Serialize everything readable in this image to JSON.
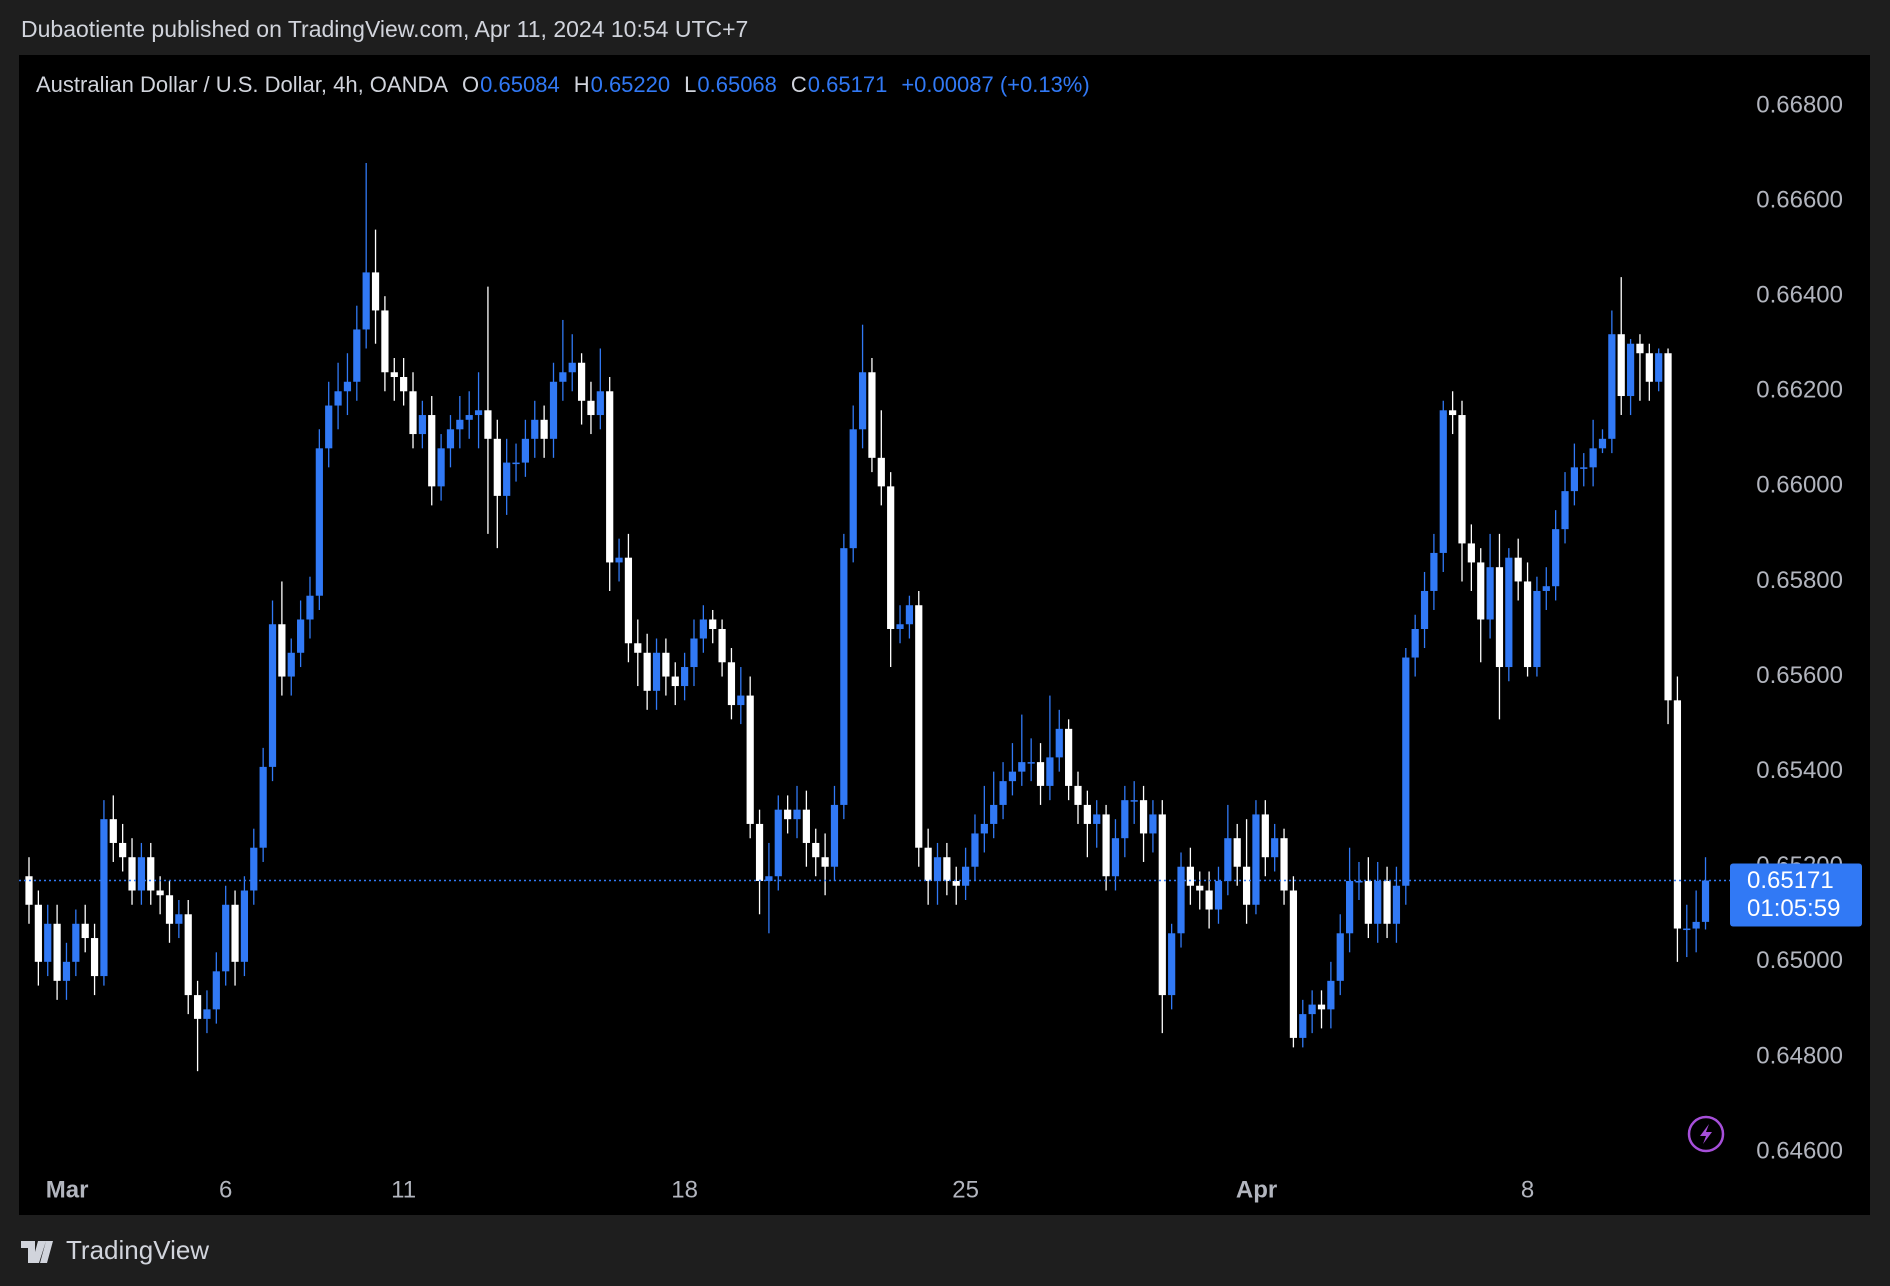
{
  "chart_data": {
    "type": "candlestick",
    "title": "Dubaotiente published on TradingView.com, Apr 11, 2024 10:54 UTC+7",
    "symbol": "Australian Dollar / U.S. Dollar, 4h, OANDA",
    "ohlc_legend": [
      {
        "key": "O",
        "value": "0.65084"
      },
      {
        "key": "H",
        "value": "0.65220"
      },
      {
        "key": "L",
        "value": "0.65068"
      },
      {
        "key": "C",
        "value": "0.65171"
      }
    ],
    "change": "+0.00087 (+0.13%)",
    "price_label": "0.65171",
    "countdown": "01:05:59",
    "footer": "TradingView",
    "up_color": "#3179f5",
    "down_color": "#ffffff",
    "ylim": [
      0.646,
      0.668
    ],
    "yticks": [
      {
        "value": 0.646,
        "label": "0.64600"
      },
      {
        "value": 0.648,
        "label": "0.64800"
      },
      {
        "value": 0.65,
        "label": "0.65000"
      },
      {
        "value": 0.652,
        "label": "0.65200"
      },
      {
        "value": 0.654,
        "label": "0.65400"
      },
      {
        "value": 0.656,
        "label": "0.65600"
      },
      {
        "value": 0.658,
        "label": "0.65800"
      },
      {
        "value": 0.66,
        "label": "0.66000"
      },
      {
        "value": 0.662,
        "label": "0.66200"
      },
      {
        "value": 0.664,
        "label": "0.66400"
      },
      {
        "value": 0.666,
        "label": "0.66600"
      },
      {
        "value": 0.668,
        "label": "0.66800"
      }
    ],
    "xticks": [
      {
        "value": 3,
        "label": "Mar"
      },
      {
        "value": 21,
        "label": "6"
      },
      {
        "value": 40,
        "label": "11"
      },
      {
        "value": 70,
        "label": "18"
      },
      {
        "value": 100,
        "label": "25"
      },
      {
        "value": 130,
        "label": "Apr"
      },
      {
        "value": 160,
        "label": "8"
      }
    ],
    "open": [
      0.6518,
      0.6512,
      0.65,
      0.6508,
      0.6496,
      0.65,
      0.6508,
      0.6505,
      0.6497,
      0.653,
      0.6525,
      0.6522,
      0.6515,
      0.6522,
      0.6515,
      0.6514,
      0.6508,
      0.651,
      0.6493,
      0.6488,
      0.649,
      0.6498,
      0.6512,
      0.65,
      0.6515,
      0.6524,
      0.6541,
      0.6571,
      0.656,
      0.6565,
      0.6572,
      0.6577,
      0.6608,
      0.6617,
      0.662,
      0.6622,
      0.6633,
      0.6645,
      0.6637,
      0.6624,
      0.6623,
      0.662,
      0.6611,
      0.6615,
      0.66,
      0.6608,
      0.6612,
      0.6614,
      0.6615,
      0.6616,
      0.661,
      0.6598,
      0.6605,
      0.6605,
      0.661,
      0.6614,
      0.661,
      0.6622,
      0.6624,
      0.6626,
      0.6618,
      0.6615,
      0.662,
      0.6584,
      0.6585,
      0.6567,
      0.6565,
      0.6557,
      0.6565,
      0.656,
      0.6558,
      0.6562,
      0.6568,
      0.6572,
      0.657,
      0.6563,
      0.6554,
      0.6556,
      0.6529,
      0.6517,
      0.6518,
      0.6532,
      0.653,
      0.6532,
      0.6525,
      0.6522,
      0.652,
      0.6533,
      0.6587,
      0.6612,
      0.6624,
      0.6606,
      0.66,
      0.657,
      0.6571,
      0.6575,
      0.6524,
      0.6517,
      0.6522,
      0.6517,
      0.6516,
      0.652,
      0.6527,
      0.6529,
      0.6533,
      0.6538,
      0.654,
      0.6542,
      0.6542,
      0.6537,
      0.6543,
      0.6549,
      0.6537,
      0.6533,
      0.6529,
      0.6531,
      0.6518,
      0.6526,
      0.6534,
      0.6534,
      0.6527,
      0.6531,
      0.6493,
      0.6506,
      0.652,
      0.6516,
      0.6515,
      0.6511,
      0.6517,
      0.6526,
      0.652,
      0.6512,
      0.6531,
      0.6522,
      0.6526,
      0.6515,
      0.6484,
      0.6489,
      0.6491,
      0.649,
      0.6496,
      0.6506,
      0.6517,
      0.6517,
      0.6508,
      0.6517,
      0.6508,
      0.6516,
      0.6564,
      0.657,
      0.6578,
      0.6586,
      0.6616,
      0.6615,
      0.6588,
      0.6584,
      0.6572,
      0.6583,
      0.6562,
      0.6585,
      0.658,
      0.6562,
      0.6578,
      0.6579,
      0.6591,
      0.6599,
      0.6604,
      0.6604,
      0.6608,
      0.661,
      0.6632,
      0.6619,
      0.663,
      0.6628,
      0.6622,
      0.6628,
      0.6555,
      0.6507,
      0.6507,
      0.65084
    ],
    "high": [
      0.6522,
      0.6515,
      0.6512,
      0.6512,
      0.6504,
      0.6511,
      0.6512,
      0.6508,
      0.6534,
      0.6535,
      0.6529,
      0.6526,
      0.6525,
      0.6525,
      0.6518,
      0.6517,
      0.6513,
      0.6513,
      0.6496,
      0.6494,
      0.6502,
      0.6516,
      0.6515,
      0.6518,
      0.6528,
      0.6545,
      0.6576,
      0.658,
      0.6568,
      0.6576,
      0.6581,
      0.6612,
      0.6622,
      0.6626,
      0.6628,
      0.6638,
      0.6668,
      0.6654,
      0.664,
      0.6627,
      0.6627,
      0.6624,
      0.6618,
      0.6619,
      0.6611,
      0.6615,
      0.6619,
      0.662,
      0.6624,
      0.6642,
      0.6614,
      0.661,
      0.6609,
      0.6614,
      0.6618,
      0.6617,
      0.6626,
      0.6635,
      0.6632,
      0.6628,
      0.6622,
      0.6629,
      0.6623,
      0.6589,
      0.659,
      0.6572,
      0.6569,
      0.6568,
      0.6568,
      0.6563,
      0.6565,
      0.6572,
      0.6575,
      0.6574,
      0.6572,
      0.6566,
      0.6562,
      0.656,
      0.6532,
      0.6525,
      0.6535,
      0.6535,
      0.6537,
      0.6536,
      0.6528,
      0.6527,
      0.6537,
      0.659,
      0.6617,
      0.6634,
      0.6627,
      0.6616,
      0.6603,
      0.6575,
      0.6577,
      0.6578,
      0.6528,
      0.6525,
      0.6525,
      0.652,
      0.6524,
      0.6531,
      0.6537,
      0.654,
      0.6542,
      0.6546,
      0.6552,
      0.6547,
      0.6546,
      0.6556,
      0.6553,
      0.6551,
      0.654,
      0.6536,
      0.6534,
      0.6533,
      0.653,
      0.6537,
      0.6538,
      0.6537,
      0.6534,
      0.6534,
      0.6508,
      0.6523,
      0.6524,
      0.6519,
      0.6519,
      0.652,
      0.6533,
      0.6529,
      0.653,
      0.6534,
      0.6534,
      0.6529,
      0.6528,
      0.6518,
      0.6492,
      0.6494,
      0.6494,
      0.65,
      0.651,
      0.6524,
      0.6521,
      0.6522,
      0.6521,
      0.652,
      0.652,
      0.6566,
      0.6573,
      0.6582,
      0.659,
      0.6618,
      0.662,
      0.6618,
      0.6592,
      0.6587,
      0.659,
      0.659,
      0.6587,
      0.6589,
      0.6584,
      0.6581,
      0.6583,
      0.6595,
      0.6603,
      0.6609,
      0.6607,
      0.6614,
      0.6612,
      0.6637,
      0.6644,
      0.6631,
      0.6632,
      0.663,
      0.6629,
      0.6629,
      0.656,
      0.6512,
      0.6515,
      0.6522
    ],
    "low": [
      0.6508,
      0.6495,
      0.6497,
      0.6492,
      0.6492,
      0.6497,
      0.6502,
      0.6493,
      0.6495,
      0.6521,
      0.6519,
      0.6512,
      0.6512,
      0.6512,
      0.651,
      0.6504,
      0.6505,
      0.6489,
      0.6477,
      0.6485,
      0.6487,
      0.6495,
      0.6495,
      0.6497,
      0.6512,
      0.6521,
      0.6538,
      0.6556,
      0.6556,
      0.6562,
      0.6568,
      0.6574,
      0.6604,
      0.6612,
      0.6615,
      0.6618,
      0.6629,
      0.663,
      0.662,
      0.6618,
      0.6617,
      0.6608,
      0.6608,
      0.6596,
      0.6597,
      0.6604,
      0.6608,
      0.661,
      0.6608,
      0.659,
      0.6587,
      0.6594,
      0.6601,
      0.6602,
      0.6606,
      0.6606,
      0.6606,
      0.6618,
      0.662,
      0.6613,
      0.6611,
      0.6612,
      0.6578,
      0.658,
      0.6563,
      0.6558,
      0.6553,
      0.6553,
      0.6556,
      0.6554,
      0.6555,
      0.6558,
      0.6565,
      0.6567,
      0.656,
      0.6551,
      0.655,
      0.6526,
      0.651,
      0.6506,
      0.6515,
      0.6527,
      0.6526,
      0.652,
      0.6518,
      0.6514,
      0.6517,
      0.653,
      0.6584,
      0.6608,
      0.6603,
      0.6596,
      0.6562,
      0.6567,
      0.6568,
      0.652,
      0.6512,
      0.6512,
      0.6514,
      0.6512,
      0.6513,
      0.6517,
      0.6523,
      0.6526,
      0.653,
      0.6535,
      0.6537,
      0.6538,
      0.6533,
      0.6534,
      0.654,
      0.6534,
      0.6529,
      0.6522,
      0.6524,
      0.6515,
      0.6515,
      0.6522,
      0.6529,
      0.6521,
      0.6523,
      0.6485,
      0.649,
      0.6503,
      0.6512,
      0.6511,
      0.6507,
      0.6508,
      0.6514,
      0.6516,
      0.6508,
      0.651,
      0.6518,
      0.6519,
      0.6512,
      0.6482,
      0.6482,
      0.6485,
      0.6486,
      0.6486,
      0.6493,
      0.6502,
      0.6513,
      0.6505,
      0.6504,
      0.6505,
      0.6504,
      0.6512,
      0.656,
      0.6566,
      0.6574,
      0.6582,
      0.6611,
      0.658,
      0.6578,
      0.6563,
      0.6568,
      0.6551,
      0.6559,
      0.6576,
      0.656,
      0.656,
      0.6574,
      0.6576,
      0.6588,
      0.6596,
      0.66,
      0.66,
      0.6607,
      0.6607,
      0.6615,
      0.6615,
      0.6618,
      0.6618,
      0.662,
      0.655,
      0.65,
      0.6501,
      0.6502,
      0.65068
    ],
    "close": [
      0.6512,
      0.65,
      0.6508,
      0.6496,
      0.65,
      0.6508,
      0.6505,
      0.6497,
      0.653,
      0.6525,
      0.6522,
      0.6515,
      0.6522,
      0.6515,
      0.6514,
      0.6508,
      0.651,
      0.6493,
      0.6488,
      0.649,
      0.6498,
      0.6512,
      0.65,
      0.6515,
      0.6524,
      0.6541,
      0.6571,
      0.656,
      0.6565,
      0.6572,
      0.6577,
      0.6608,
      0.6617,
      0.662,
      0.6622,
      0.6633,
      0.6645,
      0.6637,
      0.6624,
      0.6623,
      0.662,
      0.6611,
      0.6615,
      0.66,
      0.6608,
      0.6612,
      0.6614,
      0.6615,
      0.6616,
      0.661,
      0.6598,
      0.6605,
      0.6605,
      0.661,
      0.6614,
      0.661,
      0.6622,
      0.6624,
      0.6626,
      0.6618,
      0.6615,
      0.662,
      0.6584,
      0.6585,
      0.6567,
      0.6565,
      0.6557,
      0.6565,
      0.656,
      0.6558,
      0.6562,
      0.6568,
      0.6572,
      0.657,
      0.6563,
      0.6554,
      0.6556,
      0.6529,
      0.6517,
      0.6518,
      0.6532,
      0.653,
      0.6532,
      0.6525,
      0.6522,
      0.652,
      0.6533,
      0.6587,
      0.6612,
      0.6624,
      0.6606,
      0.66,
      0.657,
      0.6571,
      0.6575,
      0.6524,
      0.6517,
      0.6522,
      0.6517,
      0.6516,
      0.652,
      0.6527,
      0.6529,
      0.6533,
      0.6538,
      0.654,
      0.6542,
      0.6542,
      0.6537,
      0.6543,
      0.6549,
      0.6537,
      0.6533,
      0.6529,
      0.6531,
      0.6518,
      0.6526,
      0.6534,
      0.6534,
      0.6527,
      0.6531,
      0.6493,
      0.6506,
      0.652,
      0.6516,
      0.6515,
      0.6511,
      0.6517,
      0.6526,
      0.652,
      0.6512,
      0.6531,
      0.6522,
      0.6526,
      0.6515,
      0.6484,
      0.6489,
      0.6491,
      0.649,
      0.6496,
      0.6506,
      0.6517,
      0.6517,
      0.6508,
      0.6517,
      0.6508,
      0.6516,
      0.6564,
      0.657,
      0.6578,
      0.6586,
      0.6616,
      0.6615,
      0.6588,
      0.6584,
      0.6572,
      0.6583,
      0.6562,
      0.6585,
      0.658,
      0.6562,
      0.6578,
      0.6579,
      0.6591,
      0.6599,
      0.6604,
      0.6604,
      0.6608,
      0.661,
      0.6632,
      0.6619,
      0.663,
      0.6628,
      0.6622,
      0.6628,
      0.6555,
      0.6507,
      0.6507,
      0.65084,
      0.65171
    ]
  }
}
